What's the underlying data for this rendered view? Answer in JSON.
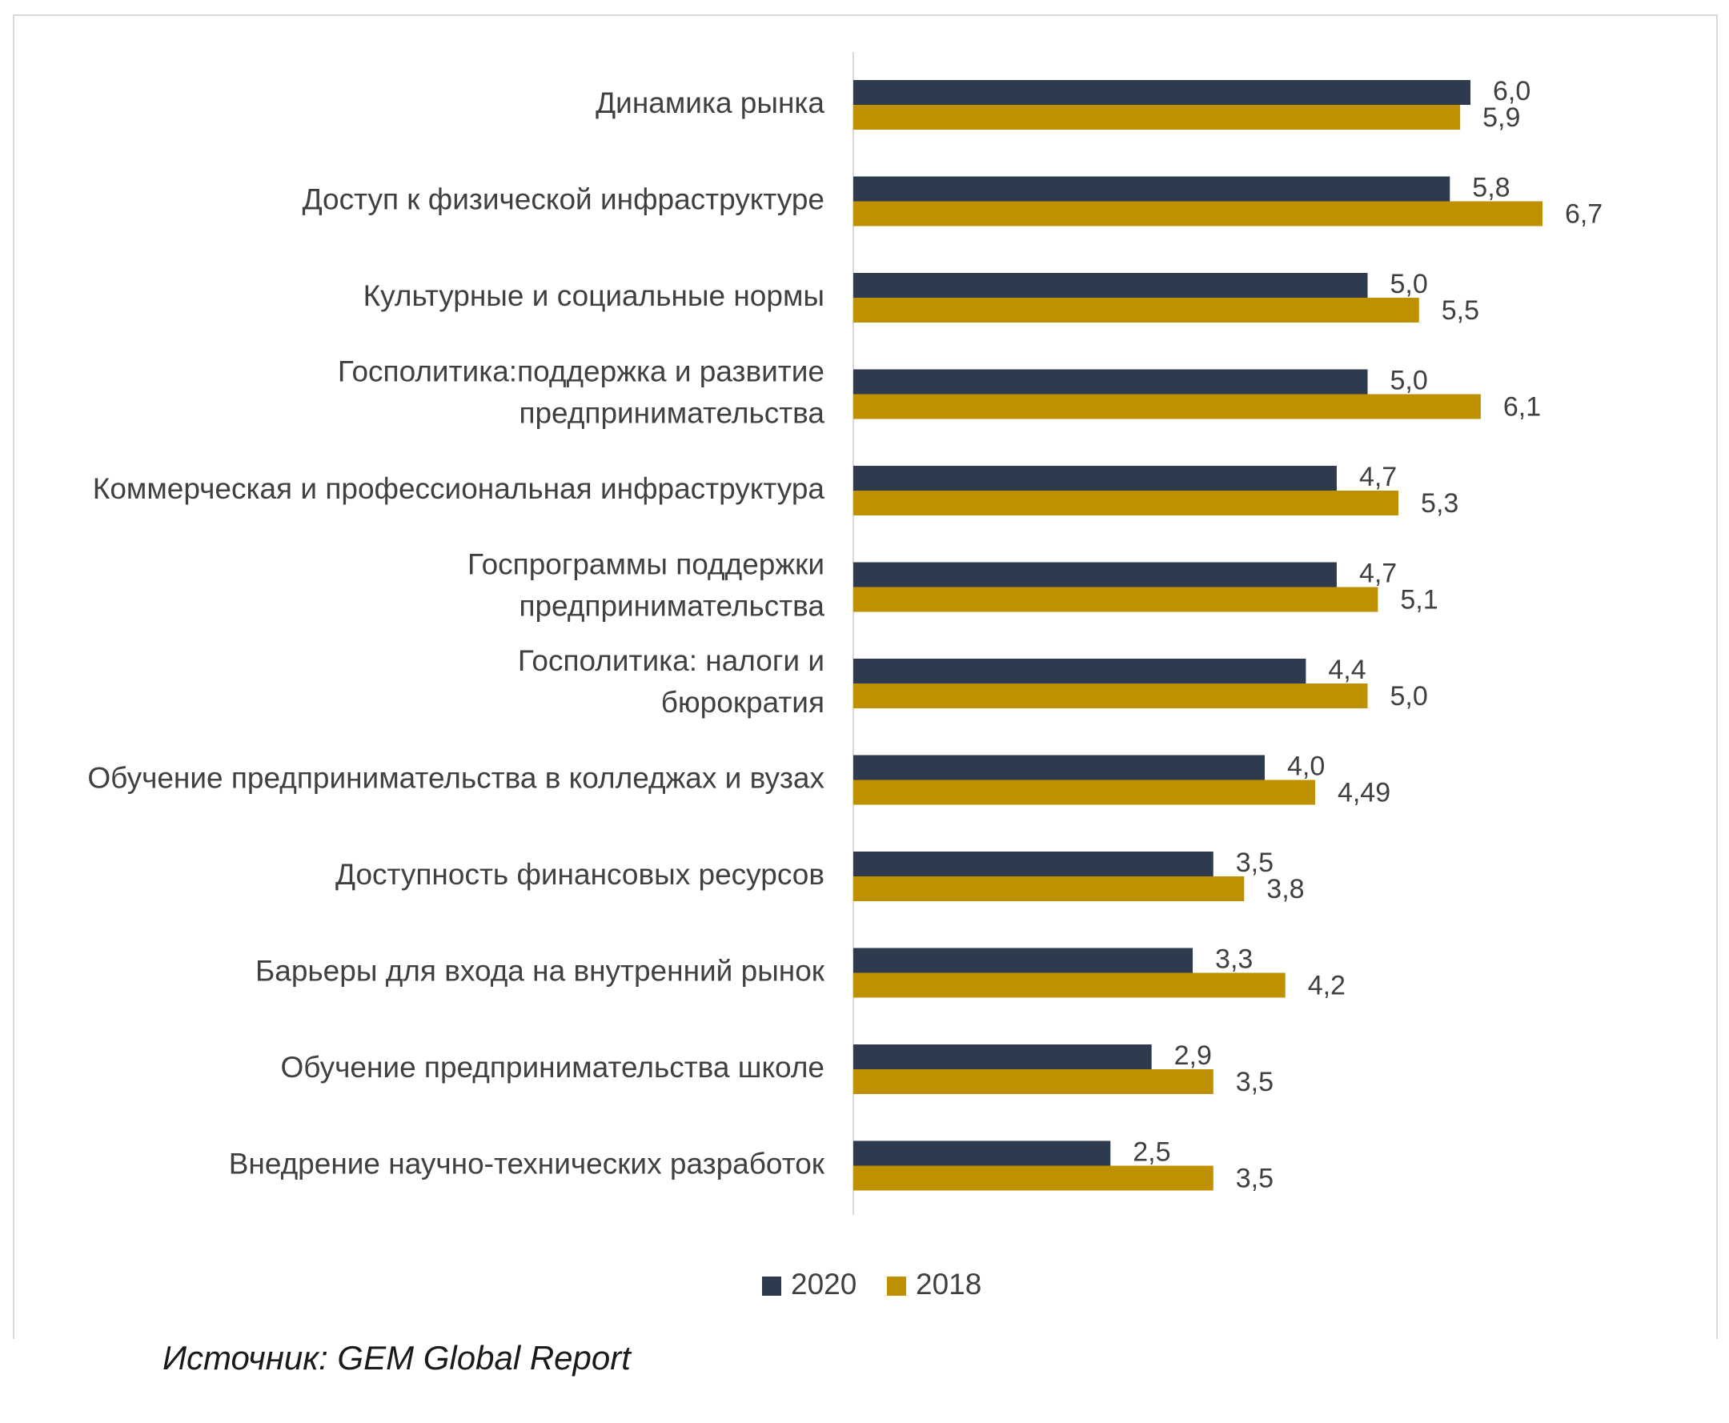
{
  "chart_data": {
    "type": "bar",
    "orientation": "horizontal",
    "categories": [
      [
        "Динамика рынка"
      ],
      [
        "Доступ к физической инфраструктуре"
      ],
      [
        "Культурные и социальные нормы"
      ],
      [
        "Госполитика:поддержка и развитие",
        "предпринимательства"
      ],
      [
        "Коммерческая и профессиональная инфраструктура"
      ],
      [
        "Госпрограммы поддержки",
        "предпринимательства"
      ],
      [
        "Госполитика: налоги и",
        "бюрократия"
      ],
      [
        "Обучение предпринимательства в колледжах и вузах"
      ],
      [
        "Доступность финансовых ресурсов"
      ],
      [
        "Барьеры для входа на внутренний рынок"
      ],
      [
        "Обучение предпринимательства школе"
      ],
      [
        "Внедрение научно-технических разработок"
      ]
    ],
    "series": [
      {
        "name": "2020",
        "color": "#2e3a4d",
        "values": [
          6.0,
          5.8,
          5.0,
          5.0,
          4.7,
          4.7,
          4.4,
          4.0,
          3.5,
          3.3,
          2.9,
          2.5
        ],
        "labels": [
          "6,0",
          "5,8",
          "5,0",
          "5,0",
          "4,7",
          "4,7",
          "4,4",
          "4,0",
          "3,5",
          "3,3",
          "2,9",
          "2,5"
        ]
      },
      {
        "name": "2018",
        "color": "#bf9000",
        "values": [
          5.9,
          6.7,
          5.5,
          6.1,
          5.3,
          5.1,
          5.0,
          4.49,
          3.8,
          4.2,
          3.5,
          3.5
        ],
        "labels": [
          "5,9",
          "6,7",
          "5,5",
          "6,1",
          "5,3",
          "5,1",
          "5,0",
          "4,49",
          "3,8",
          "4,2",
          "3,5",
          "3,5"
        ]
      }
    ],
    "xlim": [
      0,
      7.2
    ],
    "grid": false,
    "legend": "bottom"
  },
  "source_note": "Источник: GEM Global Report"
}
